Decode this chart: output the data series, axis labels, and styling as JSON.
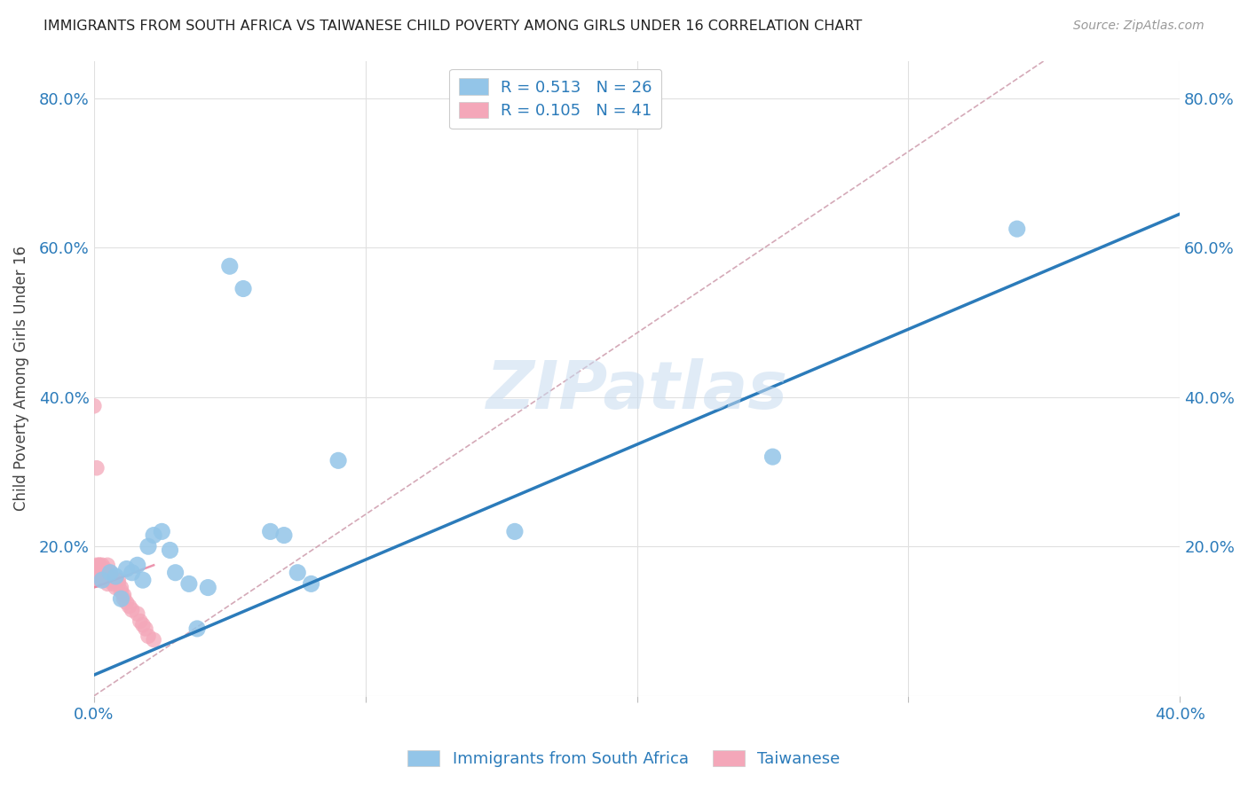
{
  "title": "IMMIGRANTS FROM SOUTH AFRICA VS TAIWANESE CHILD POVERTY AMONG GIRLS UNDER 16 CORRELATION CHART",
  "source": "Source: ZipAtlas.com",
  "ylabel": "Child Poverty Among Girls Under 16",
  "xlim": [
    0.0,
    0.4
  ],
  "ylim": [
    0.0,
    0.85
  ],
  "xtick_positions": [
    0.0,
    0.1,
    0.2,
    0.3,
    0.4
  ],
  "xtick_labels": [
    "0.0%",
    "",
    "",
    "",
    "40.0%"
  ],
  "ytick_positions": [
    0.0,
    0.2,
    0.4,
    0.6,
    0.8
  ],
  "ytick_labels": [
    "",
    "20.0%",
    "40.0%",
    "60.0%",
    "80.0%"
  ],
  "blue_r": "0.513",
  "blue_n": "26",
  "pink_r": "0.105",
  "pink_n": "41",
  "legend_label_blue": "Immigrants from South Africa",
  "legend_label_pink": "Taiwanese",
  "blue_scatter_x": [
    0.003,
    0.006,
    0.008,
    0.01,
    0.012,
    0.014,
    0.016,
    0.018,
    0.02,
    0.022,
    0.025,
    0.028,
    0.03,
    0.035,
    0.038,
    0.042,
    0.05,
    0.055,
    0.065,
    0.07,
    0.09,
    0.155,
    0.25,
    0.34,
    0.075,
    0.08
  ],
  "blue_scatter_y": [
    0.155,
    0.165,
    0.16,
    0.13,
    0.17,
    0.165,
    0.175,
    0.155,
    0.2,
    0.215,
    0.22,
    0.195,
    0.165,
    0.15,
    0.09,
    0.145,
    0.575,
    0.545,
    0.22,
    0.215,
    0.315,
    0.22,
    0.32,
    0.625,
    0.165,
    0.15
  ],
  "pink_scatter_x": [
    0.0,
    0.0,
    0.0,
    0.001,
    0.001,
    0.001,
    0.001,
    0.002,
    0.002,
    0.002,
    0.003,
    0.003,
    0.003,
    0.003,
    0.004,
    0.004,
    0.004,
    0.005,
    0.005,
    0.005,
    0.006,
    0.006,
    0.007,
    0.007,
    0.008,
    0.008,
    0.009,
    0.009,
    0.01,
    0.01,
    0.011,
    0.011,
    0.012,
    0.013,
    0.014,
    0.016,
    0.017,
    0.018,
    0.019,
    0.02,
    0.022
  ],
  "pink_scatter_y": [
    0.155,
    0.16,
    0.388,
    0.175,
    0.305,
    0.165,
    0.155,
    0.175,
    0.165,
    0.175,
    0.17,
    0.175,
    0.165,
    0.16,
    0.17,
    0.155,
    0.165,
    0.15,
    0.175,
    0.16,
    0.155,
    0.165,
    0.155,
    0.15,
    0.155,
    0.145,
    0.15,
    0.155,
    0.145,
    0.14,
    0.135,
    0.13,
    0.125,
    0.12,
    0.115,
    0.11,
    0.1,
    0.095,
    0.09,
    0.08,
    0.075
  ],
  "blue_line_x": [
    0.0,
    0.4
  ],
  "blue_line_y": [
    0.028,
    0.645
  ],
  "pink_line_x": [
    0.0,
    0.022
  ],
  "pink_line_y": [
    0.145,
    0.175
  ],
  "dashed_line_x": [
    0.0,
    0.35
  ],
  "dashed_line_y": [
    0.0,
    0.85
  ],
  "watermark": "ZIPatlas",
  "blue_color": "#93c5e8",
  "pink_color": "#f4a7b9",
  "blue_line_color": "#2b7bba",
  "pink_line_color": "#e87a9a",
  "dashed_line_color": "#d0a0b0",
  "background_color": "#ffffff",
  "grid_color": "#e0e0e0",
  "tick_color": "#2b7bba",
  "title_color": "#222222",
  "ylabel_color": "#444444",
  "source_color": "#999999"
}
